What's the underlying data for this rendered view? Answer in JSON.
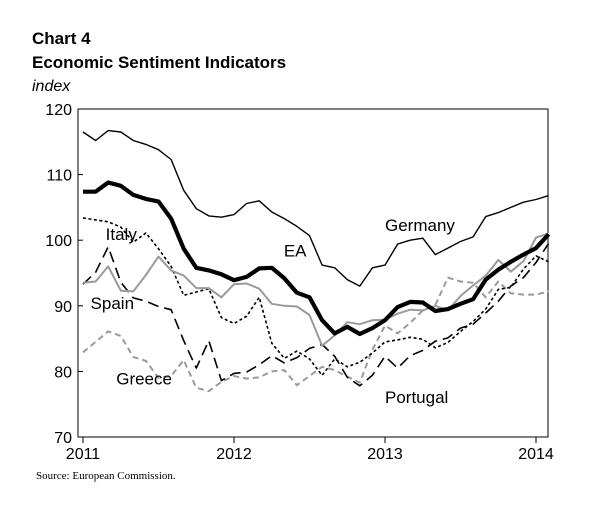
{
  "header": {
    "chart_number": "Chart 4",
    "title": "Economic Sentiment Indicators",
    "unit": "index"
  },
  "source": "Source: European Commission.",
  "chart_data": {
    "type": "line",
    "title": "Economic Sentiment Indicators",
    "ylabel": "index",
    "xlabel": "",
    "ylim": [
      70,
      120
    ],
    "yticks": [
      70,
      80,
      90,
      100,
      110,
      120
    ],
    "xlim": [
      2011.0,
      2014.0833
    ],
    "xticks": [
      2011,
      2012,
      2013,
      2014
    ],
    "x_tick_labels": [
      "2011",
      "2012",
      "2013",
      "2014"
    ],
    "grid": false,
    "legend": "inline labels",
    "series": [
      {
        "name": "Germany",
        "color": "#000000",
        "style": "solid-thin",
        "x": [
          2011.0,
          2011.0833,
          2011.1667,
          2011.25,
          2011.3333,
          2011.4167,
          2011.5,
          2011.5833,
          2011.6667,
          2011.75,
          2011.8333,
          2011.9167,
          2012.0,
          2012.0833,
          2012.1667,
          2012.25,
          2012.3333,
          2012.4167,
          2012.5,
          2012.5833,
          2012.6667,
          2012.75,
          2012.8333,
          2012.9167,
          2013.0,
          2013.0833,
          2013.1667,
          2013.25,
          2013.3333,
          2013.4167,
          2013.5,
          2013.5833,
          2013.6667,
          2013.75,
          2013.8333,
          2013.9167,
          2014.0,
          2014.0833
        ],
        "values": [
          116.5,
          115.2,
          116.7,
          116.5,
          115.2,
          114.6,
          113.8,
          112.3,
          107.6,
          104.8,
          103.7,
          103.5,
          103.9,
          105.6,
          106.0,
          104.3,
          103.3,
          102.1,
          100.7,
          96.2,
          95.8,
          94.0,
          93.0,
          95.8,
          96.2,
          99.4,
          100.0,
          100.3,
          97.8,
          98.8,
          99.8,
          100.5,
          103.6,
          104.2,
          105.0,
          105.8,
          106.2,
          106.8
        ]
      },
      {
        "name": "EA",
        "color": "#000000",
        "style": "solid-thick",
        "x": [
          2011.0,
          2011.0833,
          2011.1667,
          2011.25,
          2011.3333,
          2011.4167,
          2011.5,
          2011.5833,
          2011.6667,
          2011.75,
          2011.8333,
          2011.9167,
          2012.0,
          2012.0833,
          2012.1667,
          2012.25,
          2012.3333,
          2012.4167,
          2012.5,
          2012.5833,
          2012.6667,
          2012.75,
          2012.8333,
          2012.9167,
          2013.0,
          2013.0833,
          2013.1667,
          2013.25,
          2013.3333,
          2013.4167,
          2013.5,
          2013.5833,
          2013.6667,
          2013.75,
          2013.8333,
          2013.9167,
          2014.0,
          2014.0833
        ],
        "values": [
          107.4,
          107.4,
          108.8,
          108.3,
          106.9,
          106.3,
          105.9,
          103.3,
          98.7,
          95.8,
          95.4,
          94.8,
          93.9,
          94.4,
          95.7,
          95.8,
          94.2,
          92.0,
          91.3,
          87.8,
          85.8,
          86.8,
          85.7,
          86.6,
          87.8,
          89.8,
          90.6,
          90.5,
          89.2,
          89.5,
          90.3,
          91.0,
          94.0,
          95.5,
          96.7,
          97.8,
          98.8,
          100.9
        ]
      },
      {
        "name": "Italy",
        "color": "#000000",
        "style": "dotted",
        "x": [
          2011.0,
          2011.0833,
          2011.1667,
          2011.25,
          2011.3333,
          2011.4167,
          2011.5,
          2011.5833,
          2011.6667,
          2011.75,
          2011.8333,
          2011.9167,
          2012.0,
          2012.0833,
          2012.1667,
          2012.25,
          2012.3333,
          2012.4167,
          2012.5,
          2012.5833,
          2012.6667,
          2012.75,
          2012.8333,
          2012.9167,
          2013.0,
          2013.0833,
          2013.1667,
          2013.25,
          2013.3333,
          2013.4167,
          2013.5,
          2013.5833,
          2013.6667,
          2013.75,
          2013.8333,
          2013.9167,
          2014.0,
          2014.0833
        ],
        "values": [
          103.4,
          103.1,
          102.8,
          102.0,
          99.7,
          101.1,
          98.7,
          96.0,
          91.6,
          92.1,
          92.6,
          88.2,
          87.3,
          88.4,
          91.3,
          84.3,
          82.0,
          83.1,
          81.9,
          79.4,
          81.9,
          80.7,
          81.4,
          82.8,
          84.5,
          84.8,
          85.2,
          84.9,
          83.6,
          84.4,
          86.1,
          87.6,
          89.5,
          92.5,
          92.8,
          95.6,
          97.6,
          96.7
        ]
      },
      {
        "name": "Spain",
        "color": "#9a9a9a",
        "style": "solid-grey",
        "x": [
          2011.0,
          2011.0833,
          2011.1667,
          2011.25,
          2011.3333,
          2011.4167,
          2011.5,
          2011.5833,
          2011.6667,
          2011.75,
          2011.8333,
          2011.9167,
          2012.0,
          2012.0833,
          2012.1667,
          2012.25,
          2012.3333,
          2012.4167,
          2012.5,
          2012.5833,
          2012.6667,
          2012.75,
          2012.8333,
          2012.9167,
          2013.0,
          2013.0833,
          2013.1667,
          2013.25,
          2013.3333,
          2013.4167,
          2013.5,
          2013.5833,
          2013.6667,
          2013.75,
          2013.8333,
          2013.9167,
          2014.0,
          2014.0833
        ],
        "values": [
          93.5,
          93.7,
          96.0,
          92.3,
          92.2,
          94.7,
          97.5,
          95.4,
          94.6,
          92.7,
          92.7,
          91.3,
          93.3,
          93.4,
          92.6,
          90.3,
          90.0,
          89.9,
          88.6,
          83.9,
          85.5,
          87.5,
          87.2,
          87.8,
          87.9,
          88.8,
          89.4,
          89.3,
          90.0,
          89.3,
          91.5,
          93.1,
          94.6,
          97.0,
          95.2,
          96.8,
          100.4,
          101.0
        ]
      },
      {
        "name": "Greece",
        "color": "#9a9a9a",
        "style": "dashed-grey",
        "x": [
          2011.0,
          2011.0833,
          2011.1667,
          2011.25,
          2011.3333,
          2011.4167,
          2011.5,
          2011.5833,
          2011.6667,
          2011.75,
          2011.8333,
          2011.9167,
          2012.0,
          2012.0833,
          2012.1667,
          2012.25,
          2012.3333,
          2012.4167,
          2012.5,
          2012.5833,
          2012.6667,
          2012.75,
          2012.8333,
          2012.9167,
          2013.0,
          2013.0833,
          2013.1667,
          2013.25,
          2013.3333,
          2013.4167,
          2013.5,
          2013.5833,
          2013.6667,
          2013.75,
          2013.8333,
          2013.9167,
          2014.0,
          2014.0833
        ],
        "values": [
          82.9,
          84.5,
          86.1,
          85.4,
          82.2,
          81.6,
          79.0,
          79.3,
          81.7,
          77.5,
          77.0,
          78.4,
          79.3,
          78.9,
          79.1,
          80.0,
          80.2,
          77.9,
          79.3,
          80.7,
          80.2,
          79.2,
          78.3,
          83.3,
          87.0,
          85.8,
          87.4,
          89.3,
          90.1,
          94.3,
          93.7,
          93.5,
          91.3,
          93.7,
          91.9,
          91.7,
          91.7,
          92.2
        ]
      },
      {
        "name": "Portugal",
        "color": "#000000",
        "style": "dashed-long",
        "x": [
          2011.0,
          2011.0833,
          2011.1667,
          2011.25,
          2011.3333,
          2011.4167,
          2011.5,
          2011.5833,
          2011.6667,
          2011.75,
          2011.8333,
          2011.9167,
          2012.0,
          2012.0833,
          2012.1667,
          2012.25,
          2012.3333,
          2012.4167,
          2012.5,
          2012.5833,
          2012.6667,
          2012.75,
          2012.8333,
          2012.9167,
          2013.0,
          2013.0833,
          2013.1667,
          2013.25,
          2013.3333,
          2013.4167,
          2013.5,
          2013.5833,
          2013.6667,
          2013.75,
          2013.8333,
          2013.9167,
          2014.0,
          2014.0833
        ],
        "values": [
          93.3,
          95.1,
          99.0,
          93.6,
          91.2,
          90.7,
          89.9,
          89.4,
          84.7,
          80.5,
          84.7,
          78.6,
          79.7,
          79.9,
          81.0,
          82.4,
          81.3,
          82.1,
          83.5,
          84.1,
          82.3,
          79.1,
          77.8,
          79.4,
          82.3,
          80.5,
          82.4,
          83.2,
          84.6,
          85.1,
          86.6,
          87.2,
          88.9,
          90.7,
          93.0,
          94.3,
          96.6,
          99.5
        ]
      }
    ],
    "annotations": [
      {
        "text": "Germany",
        "x": 2013.0,
        "y": 101.4
      },
      {
        "text": "EA",
        "x": 2012.33,
        "y": 97.5
      },
      {
        "text": "Italy",
        "x": 2011.15,
        "y": 100.0
      },
      {
        "text": "Spain",
        "x": 2011.05,
        "y": 89.5
      },
      {
        "text": "Greece",
        "x": 2011.22,
        "y": 78.0
      },
      {
        "text": "Portugal",
        "x": 2013.0,
        "y": 75.2
      }
    ]
  }
}
